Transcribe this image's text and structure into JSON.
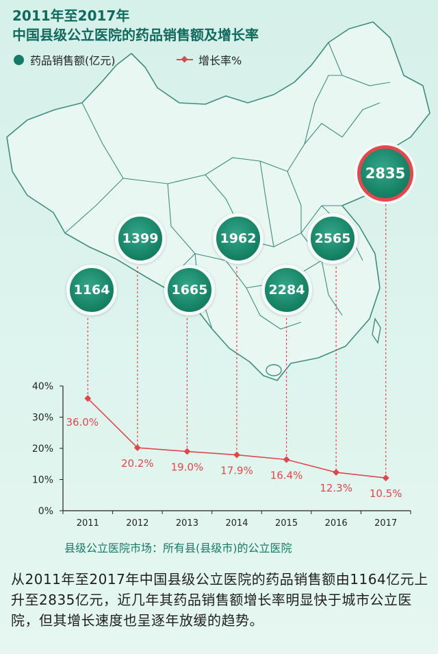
{
  "title_line1": "2011年至2017年",
  "title_line2": "中国县级公立医院的药品销售额及增长率",
  "legend": {
    "sales_label": "药品销售额(亿元)",
    "growth_label": "增长率%"
  },
  "colors": {
    "bubble": "#178466",
    "line": "#e0474a",
    "title": "#0f6a5c",
    "highlight_ring": "#e6474d"
  },
  "chart_data": {
    "type": "line",
    "categories": [
      "2011",
      "2012",
      "2013",
      "2014",
      "2015",
      "2016",
      "2017"
    ],
    "series": [
      {
        "name": "药品销售额(亿元)",
        "values": [
          1164,
          1399,
          1665,
          1962,
          2284,
          2565,
          2835
        ]
      },
      {
        "name": "增长率%",
        "values": [
          36.0,
          20.2,
          19.0,
          17.9,
          16.4,
          12.3,
          10.5
        ],
        "labels": [
          "36.0%",
          "20.2%",
          "19.0%",
          "17.9%",
          "16.4%",
          "12.3%",
          "10.5%"
        ]
      }
    ],
    "y_ticks": [
      "40%",
      "30%",
      "20%",
      "10%",
      "0%"
    ],
    "ylim": [
      0,
      40
    ],
    "grid": false
  },
  "footnote": "县级公立医院市场：所有县(县级市)的公立医院",
  "paragraph": "从2011年至2017年中国县级公立医院的药品销售额由1164亿元上升至2835亿元，近几年其药品销售额增长率明显快于城市公立医院，但其增长速度也呈逐年放缓的趋势。"
}
